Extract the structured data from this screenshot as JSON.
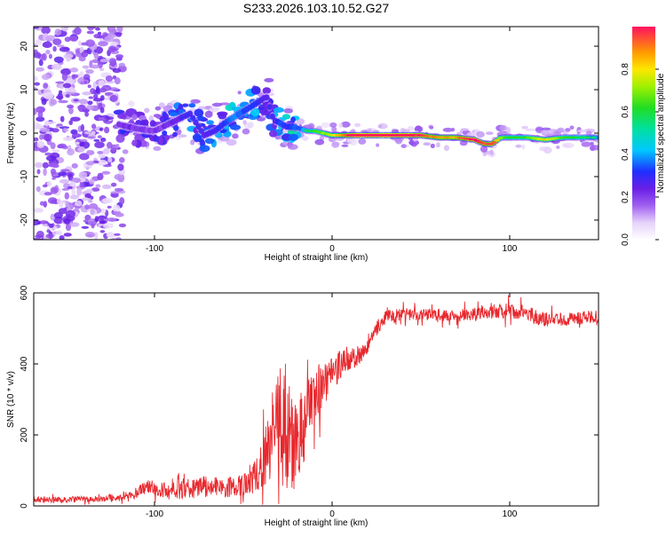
{
  "title": "S233.2026.103.10.52.G27",
  "chart_data": [
    {
      "type": "heatmap",
      "xlabel": "Height of straight line (km)",
      "ylabel": "Frequency (Hz)",
      "xlim": [
        -168,
        150
      ],
      "ylim": [
        -24.5,
        24.5
      ],
      "xticks": [
        -100,
        0,
        100
      ],
      "xtick_labels": [
        "-100",
        "0",
        "100"
      ],
      "yticks": [
        -20,
        -10,
        0,
        10,
        20
      ],
      "ytick_labels": [
        "-20",
        "-10",
        "0",
        "10",
        "20"
      ],
      "colorbar": {
        "label": "Normalized spectral amplitude",
        "range": [
          0,
          1
        ],
        "ticks": [
          0.0,
          0.2,
          0.4,
          0.6,
          0.8
        ],
        "tick_labels": [
          "0.0",
          "0.2",
          "0.4",
          "0.6",
          "0.8"
        ]
      },
      "ridge": {
        "name": "dominant frequency track",
        "x": [
          -120,
          -110,
          -100,
          -90,
          -80,
          -72,
          -66,
          -60,
          -54,
          -48,
          -42,
          -37,
          -33,
          -30,
          -26,
          -22,
          -18,
          -14,
          -10,
          -5,
          0,
          5,
          10,
          20,
          30,
          40,
          50,
          60,
          70,
          80,
          86,
          90,
          95,
          100,
          110,
          120,
          130,
          140,
          150
        ],
        "freq": [
          2.0,
          1.0,
          0.5,
          2.5,
          4.5,
          -0.5,
          0.5,
          2.5,
          4.0,
          5.5,
          7.0,
          8.5,
          3.0,
          2.5,
          1.5,
          1.5,
          1.0,
          0.5,
          0.5,
          0.0,
          -0.5,
          -0.5,
          -0.5,
          -0.5,
          -0.5,
          -0.5,
          -0.5,
          -1.0,
          -1.0,
          -1.5,
          -2.5,
          -2.5,
          -1.0,
          -1.0,
          -1.0,
          -1.5,
          -1.0,
          -1.0,
          -1.0
        ],
        "amplitude": [
          0.3,
          0.25,
          0.25,
          0.3,
          0.35,
          0.3,
          0.35,
          0.4,
          0.45,
          0.4,
          0.35,
          0.3,
          0.35,
          0.4,
          0.4,
          0.45,
          0.45,
          0.5,
          0.55,
          0.6,
          0.65,
          0.75,
          0.9,
          0.95,
          0.95,
          0.95,
          0.85,
          0.75,
          0.75,
          0.9,
          0.8,
          0.85,
          0.6,
          0.55,
          0.55,
          0.7,
          0.55,
          0.5,
          0.45
        ]
      }
    },
    {
      "type": "line",
      "xlabel": "Height of straight line (km)",
      "ylabel": "SNR (10 * v/v)",
      "xlim": [
        -168,
        150
      ],
      "ylim": [
        0,
        600
      ],
      "xticks": [
        -100,
        0,
        100
      ],
      "xtick_labels": [
        "-100",
        "0",
        "100"
      ],
      "yticks": [
        0,
        200,
        400,
        600
      ],
      "ytick_labels": [
        "0",
        "200",
        "400",
        "600"
      ],
      "color": "#e8282d",
      "series": [
        {
          "name": "SNR envelope",
          "x": [
            -168,
            -150,
            -130,
            -115,
            -105,
            -90,
            -75,
            -60,
            -50,
            -45,
            -40,
            -36,
            -32,
            -28,
            -24,
            -20,
            -16,
            -12,
            -8,
            -4,
            0,
            5,
            10,
            15,
            20,
            25,
            30,
            40,
            50,
            60,
            70,
            80,
            90,
            100,
            110,
            116,
            120,
            130,
            140,
            150
          ],
          "mean": [
            18,
            18,
            20,
            28,
            50,
            45,
            55,
            52,
            60,
            70,
            110,
            160,
            210,
            230,
            220,
            190,
            230,
            300,
            330,
            350,
            370,
            400,
            420,
            420,
            450,
            500,
            530,
            540,
            540,
            540,
            535,
            540,
            545,
            550,
            545,
            530,
            525,
            525,
            530,
            535
          ],
          "noise": [
            8,
            9,
            9,
            12,
            22,
            28,
            30,
            28,
            30,
            40,
            60,
            100,
            150,
            180,
            170,
            150,
            110,
            80,
            70,
            60,
            55,
            40,
            35,
            30,
            25,
            22,
            20,
            18,
            18,
            18,
            18,
            18,
            20,
            22,
            20,
            25,
            20,
            18,
            18,
            18
          ]
        }
      ]
    }
  ]
}
